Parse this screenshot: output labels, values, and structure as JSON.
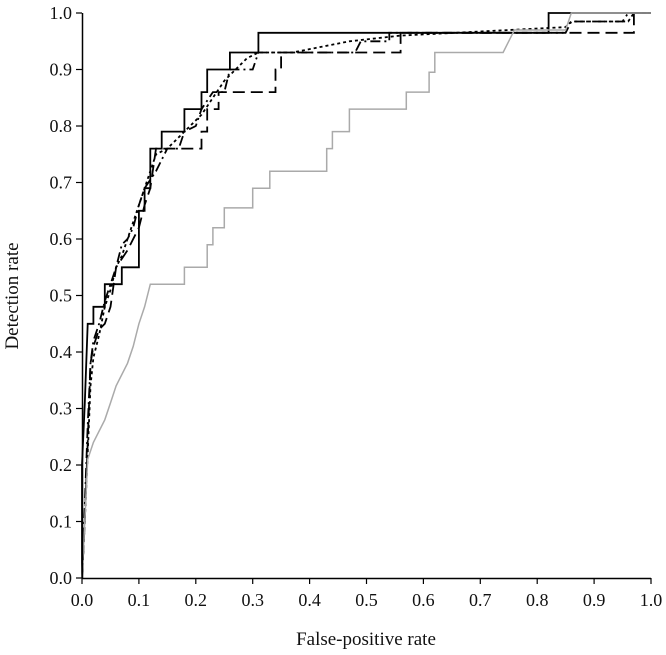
{
  "chart_data": {
    "type": "line",
    "title": "",
    "xlabel": "False-positive rate",
    "ylabel": "Detection rate",
    "xlim": [
      0.0,
      1.0
    ],
    "ylim": [
      0.0,
      1.0
    ],
    "xticks": [
      "0.0",
      "0.1",
      "0.2",
      "0.3",
      "0.4",
      "0.5",
      "0.6",
      "0.7",
      "0.8",
      "0.9",
      "1.0"
    ],
    "yticks": [
      "0.0",
      "0.1",
      "0.2",
      "0.3",
      "0.4",
      "0.5",
      "0.6",
      "0.7",
      "0.8",
      "0.9",
      "1.0"
    ],
    "grid": false,
    "legend": "none",
    "series": [
      {
        "style": "solid",
        "color": "#000000",
        "points": [
          [
            0,
            0
          ],
          [
            0,
            0.2
          ],
          [
            0.005,
            0.31
          ],
          [
            0.01,
            0.45
          ],
          [
            0.02,
            0.45
          ],
          [
            0.02,
            0.48
          ],
          [
            0.04,
            0.48
          ],
          [
            0.04,
            0.52
          ],
          [
            0.07,
            0.52
          ],
          [
            0.07,
            0.55
          ],
          [
            0.1,
            0.55
          ],
          [
            0.1,
            0.65
          ],
          [
            0.11,
            0.65
          ],
          [
            0.11,
            0.69
          ],
          [
            0.12,
            0.69
          ],
          [
            0.12,
            0.76
          ],
          [
            0.14,
            0.76
          ],
          [
            0.14,
            0.79
          ],
          [
            0.18,
            0.79
          ],
          [
            0.18,
            0.83
          ],
          [
            0.21,
            0.83
          ],
          [
            0.21,
            0.86
          ],
          [
            0.22,
            0.86
          ],
          [
            0.22,
            0.9
          ],
          [
            0.26,
            0.9
          ],
          [
            0.26,
            0.93
          ],
          [
            0.31,
            0.93
          ],
          [
            0.31,
            0.965
          ],
          [
            0.82,
            0.965
          ],
          [
            0.82,
            1.0
          ],
          [
            1.0,
            1.0
          ]
        ]
      },
      {
        "style": "dashed",
        "color": "#000000",
        "points": [
          [
            0,
            0
          ],
          [
            0.005,
            0.1
          ],
          [
            0.01,
            0.24
          ],
          [
            0.015,
            0.38
          ],
          [
            0.02,
            0.41
          ],
          [
            0.03,
            0.44
          ],
          [
            0.04,
            0.45
          ],
          [
            0.05,
            0.48
          ],
          [
            0.06,
            0.55
          ],
          [
            0.08,
            0.58
          ],
          [
            0.1,
            0.62
          ],
          [
            0.11,
            0.66
          ],
          [
            0.12,
            0.69
          ],
          [
            0.13,
            0.76
          ],
          [
            0.21,
            0.76
          ],
          [
            0.21,
            0.79
          ],
          [
            0.22,
            0.79
          ],
          [
            0.22,
            0.83
          ],
          [
            0.24,
            0.83
          ],
          [
            0.24,
            0.86
          ],
          [
            0.34,
            0.86
          ],
          [
            0.34,
            0.9
          ],
          [
            0.35,
            0.9
          ],
          [
            0.35,
            0.93
          ],
          [
            0.56,
            0.93
          ],
          [
            0.56,
            0.965
          ],
          [
            0.83,
            0.965
          ],
          [
            0.83,
            0.965
          ],
          [
            0.96,
            0.965
          ],
          [
            0.96,
            0.965
          ],
          [
            0.97,
            0.965
          ],
          [
            0.97,
            1.0
          ],
          [
            1.0,
            1.0
          ]
        ]
      },
      {
        "style": "dash-dot",
        "color": "#000000",
        "points": [
          [
            0,
            0
          ],
          [
            0.005,
            0.13
          ],
          [
            0.01,
            0.27
          ],
          [
            0.015,
            0.38
          ],
          [
            0.02,
            0.42
          ],
          [
            0.03,
            0.45
          ],
          [
            0.04,
            0.49
          ],
          [
            0.05,
            0.52
          ],
          [
            0.06,
            0.55
          ],
          [
            0.07,
            0.59
          ],
          [
            0.08,
            0.6
          ],
          [
            0.09,
            0.62
          ],
          [
            0.1,
            0.66
          ],
          [
            0.11,
            0.69
          ],
          [
            0.13,
            0.72
          ],
          [
            0.15,
            0.76
          ],
          [
            0.17,
            0.76
          ],
          [
            0.18,
            0.79
          ],
          [
            0.2,
            0.8
          ],
          [
            0.21,
            0.83
          ],
          [
            0.23,
            0.86
          ],
          [
            0.25,
            0.86
          ],
          [
            0.26,
            0.9
          ],
          [
            0.3,
            0.9
          ],
          [
            0.31,
            0.93
          ],
          [
            0.34,
            0.93
          ],
          [
            0.36,
            0.93
          ],
          [
            0.48,
            0.93
          ],
          [
            0.49,
            0.95
          ],
          [
            0.54,
            0.95
          ],
          [
            0.54,
            0.965
          ],
          [
            0.85,
            0.965
          ],
          [
            0.86,
            0.985
          ],
          [
            0.95,
            0.985
          ],
          [
            0.96,
            1.0
          ],
          [
            1.0,
            1.0
          ]
        ]
      },
      {
        "style": "dotted",
        "color": "#000000",
        "points": [
          [
            0,
            0
          ],
          [
            0.005,
            0.1
          ],
          [
            0.01,
            0.22
          ],
          [
            0.015,
            0.34
          ],
          [
            0.02,
            0.39
          ],
          [
            0.03,
            0.43
          ],
          [
            0.04,
            0.48
          ],
          [
            0.05,
            0.51
          ],
          [
            0.06,
            0.55
          ],
          [
            0.07,
            0.57
          ],
          [
            0.08,
            0.6
          ],
          [
            0.09,
            0.63
          ],
          [
            0.1,
            0.66
          ],
          [
            0.11,
            0.69
          ],
          [
            0.12,
            0.72
          ],
          [
            0.13,
            0.75
          ],
          [
            0.15,
            0.76
          ],
          [
            0.17,
            0.78
          ],
          [
            0.19,
            0.8
          ],
          [
            0.21,
            0.82
          ],
          [
            0.23,
            0.85
          ],
          [
            0.25,
            0.88
          ],
          [
            0.27,
            0.9
          ],
          [
            0.29,
            0.92
          ],
          [
            0.31,
            0.93
          ],
          [
            0.37,
            0.93
          ],
          [
            0.47,
            0.95
          ],
          [
            0.56,
            0.96
          ],
          [
            0.85,
            0.975
          ],
          [
            0.86,
            0.985
          ],
          [
            0.96,
            0.985
          ],
          [
            0.97,
            1.0
          ],
          [
            1.0,
            1.0
          ]
        ]
      },
      {
        "style": "solid",
        "color": "#aaaaaa",
        "points": [
          [
            0,
            0
          ],
          [
            0.005,
            0.1
          ],
          [
            0.01,
            0.21
          ],
          [
            0.02,
            0.24
          ],
          [
            0.04,
            0.28
          ],
          [
            0.05,
            0.31
          ],
          [
            0.06,
            0.34
          ],
          [
            0.08,
            0.38
          ],
          [
            0.09,
            0.41
          ],
          [
            0.1,
            0.45
          ],
          [
            0.11,
            0.48
          ],
          [
            0.12,
            0.52
          ],
          [
            0.18,
            0.52
          ],
          [
            0.18,
            0.55
          ],
          [
            0.22,
            0.55
          ],
          [
            0.22,
            0.59
          ],
          [
            0.23,
            0.59
          ],
          [
            0.23,
            0.62
          ],
          [
            0.25,
            0.62
          ],
          [
            0.25,
            0.655
          ],
          [
            0.3,
            0.655
          ],
          [
            0.3,
            0.69
          ],
          [
            0.33,
            0.69
          ],
          [
            0.33,
            0.72
          ],
          [
            0.43,
            0.72
          ],
          [
            0.43,
            0.76
          ],
          [
            0.44,
            0.76
          ],
          [
            0.44,
            0.79
          ],
          [
            0.47,
            0.79
          ],
          [
            0.47,
            0.83
          ],
          [
            0.57,
            0.83
          ],
          [
            0.57,
            0.86
          ],
          [
            0.61,
            0.86
          ],
          [
            0.61,
            0.895
          ],
          [
            0.62,
            0.895
          ],
          [
            0.62,
            0.93
          ],
          [
            0.74,
            0.93
          ],
          [
            0.76,
            0.97
          ],
          [
            0.85,
            0.97
          ],
          [
            0.86,
            1.0
          ],
          [
            1.0,
            1.0
          ]
        ]
      }
    ]
  }
}
